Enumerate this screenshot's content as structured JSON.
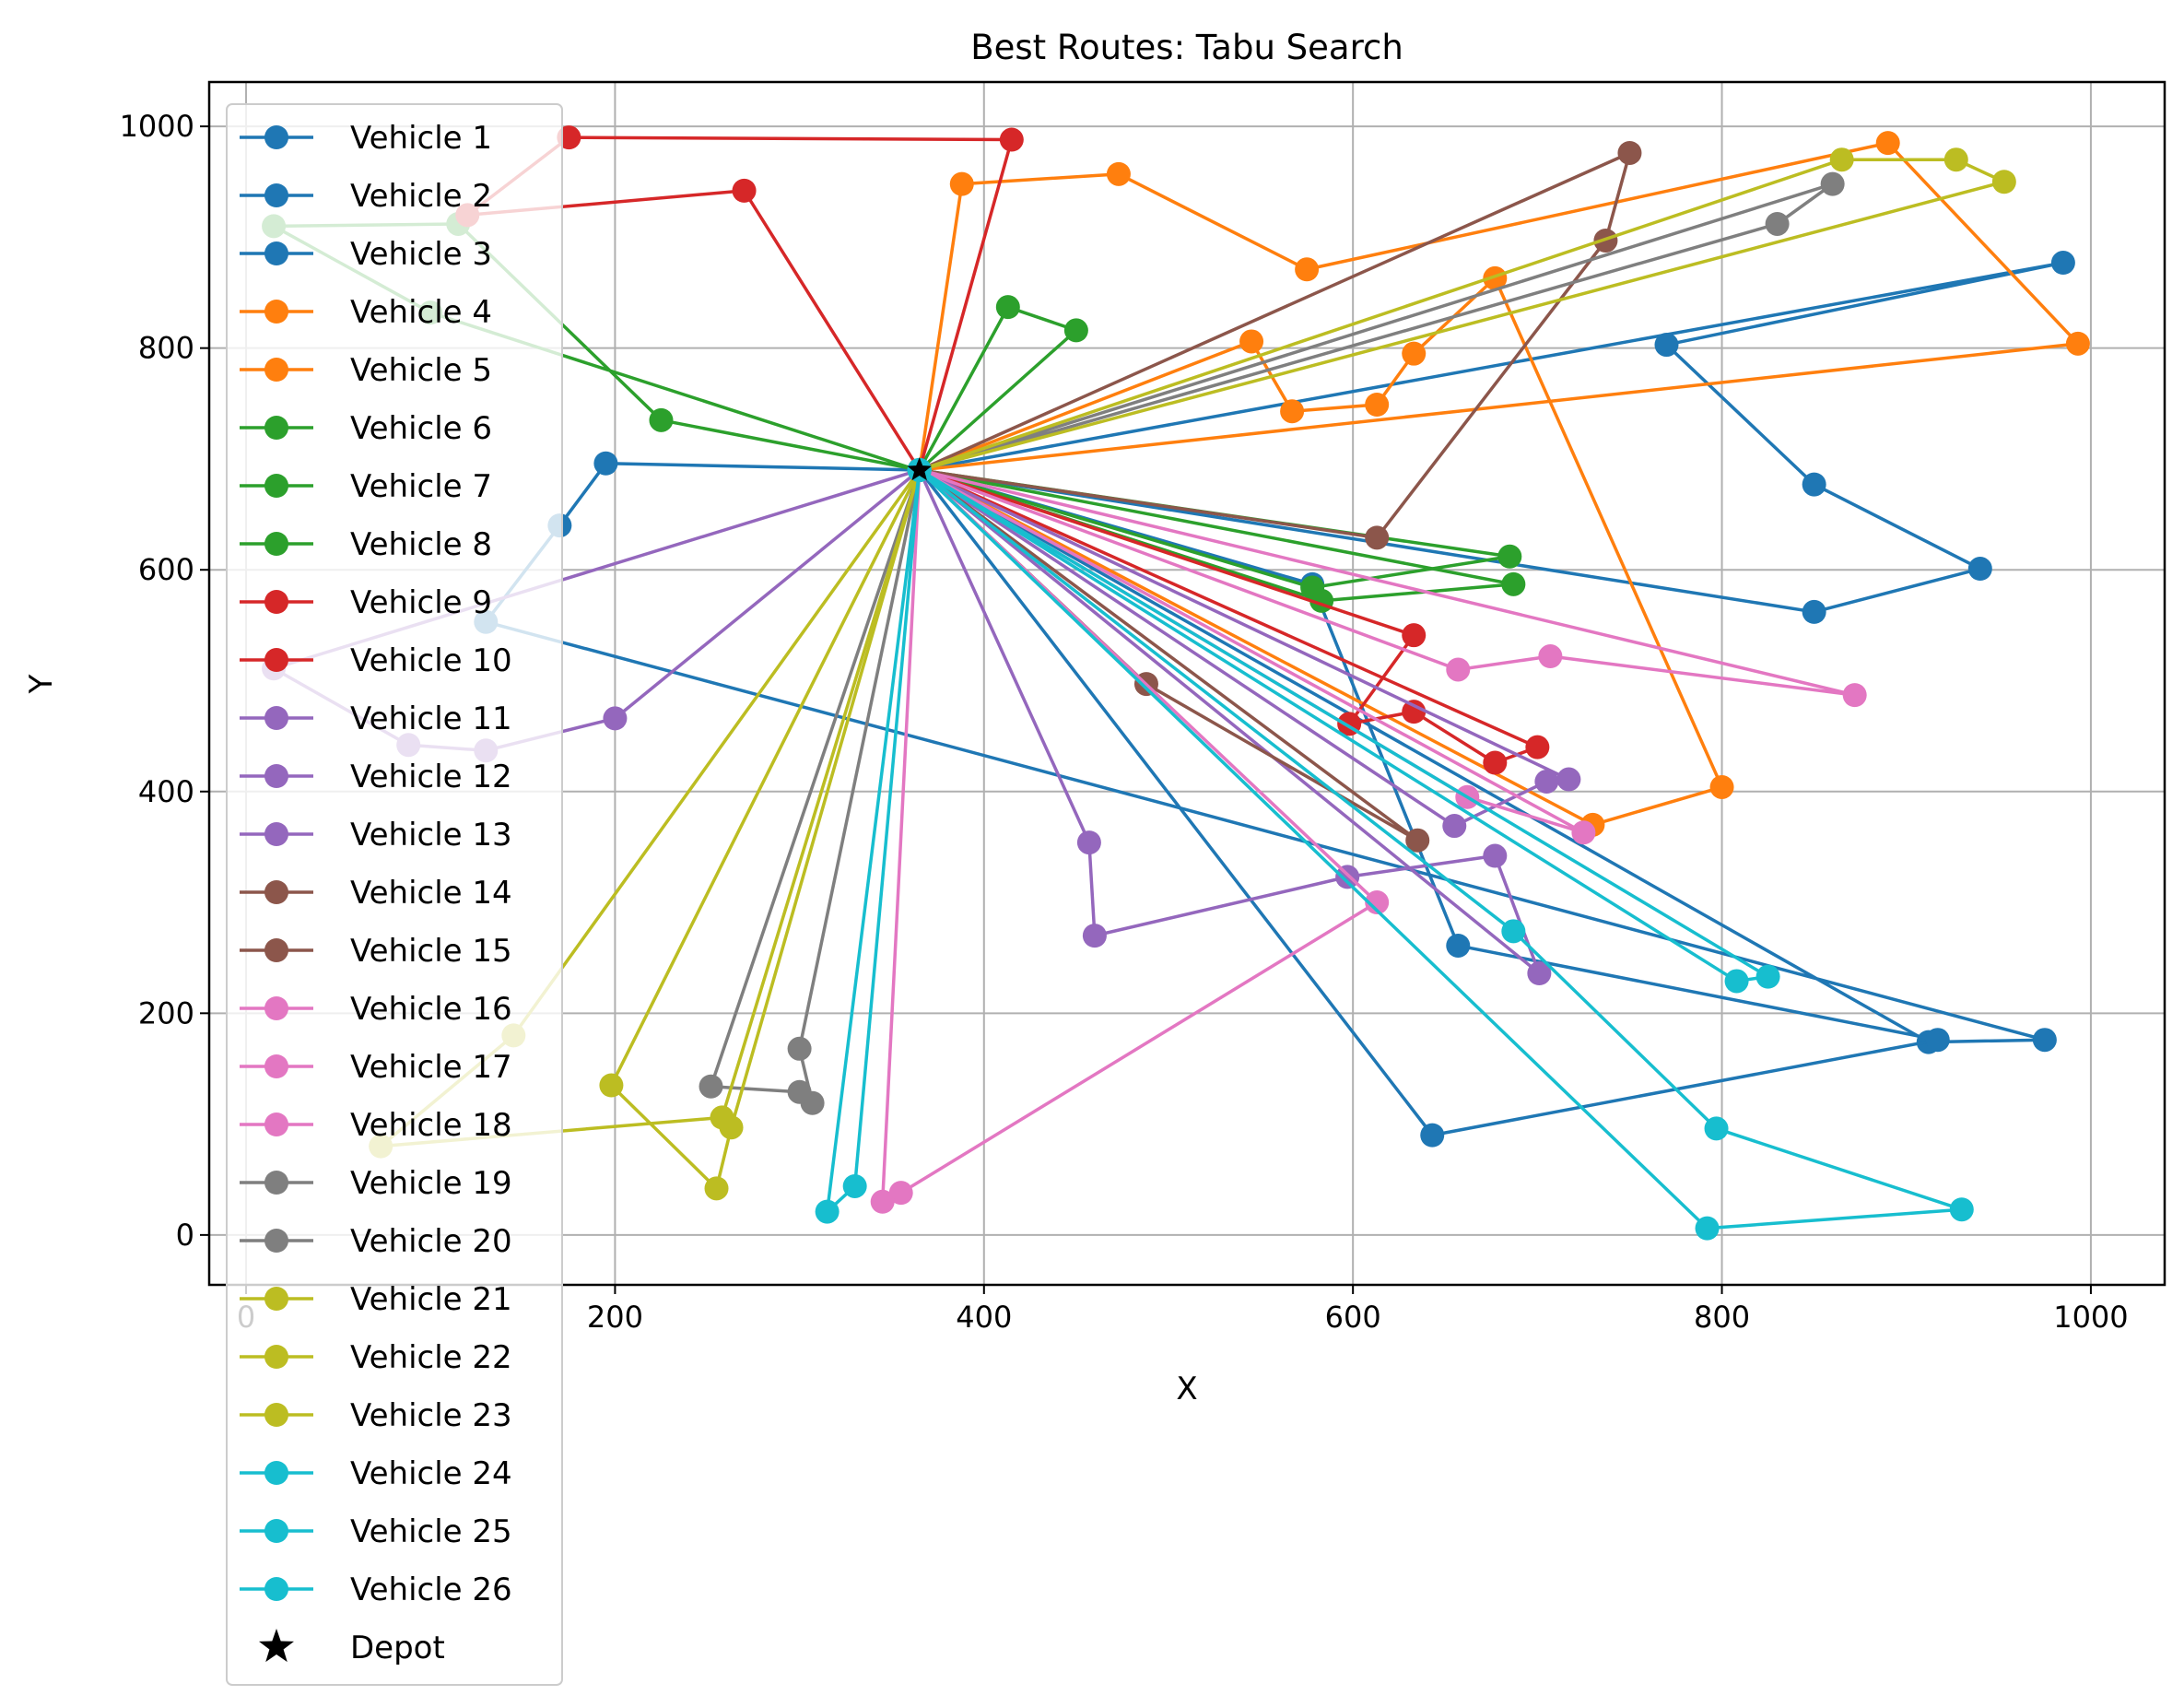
{
  "chart_data": {
    "type": "line",
    "title": "Best Routes: Tabu Search",
    "xlabel": "X",
    "ylabel": "Y",
    "xlim": [
      -20,
      1040
    ],
    "ylim": [
      -45,
      1040
    ],
    "xticks": [
      0,
      200,
      400,
      600,
      800,
      1000
    ],
    "yticks": [
      0,
      200,
      400,
      600,
      800,
      1000
    ],
    "xtick_labels": [
      "0",
      "200",
      "400",
      "600",
      "800",
      "1000"
    ],
    "ytick_labels": [
      "0",
      "200",
      "400",
      "600",
      "800",
      "1000"
    ],
    "grid": true,
    "legend_placement": "upper-left",
    "depot": {
      "name": "Depot",
      "x": 365,
      "y": 690,
      "color": "#000000",
      "marker": "star"
    },
    "series": [
      {
        "name": "Vehicle 1",
        "color": "#1f77b4",
        "x": [
          365,
          985,
          770,
          850,
          940,
          850,
          365
        ],
        "y": [
          690,
          877,
          803,
          677,
          601,
          562,
          690
        ]
      },
      {
        "name": "Vehicle 2",
        "color": "#1f77b4",
        "x": [
          365,
          195,
          170,
          130,
          975,
          912,
          365
        ],
        "y": [
          690,
          696,
          640,
          553,
          176,
          174,
          690
        ]
      },
      {
        "name": "Vehicle 3",
        "color": "#1f77b4",
        "x": [
          365,
          578,
          657,
          917,
          643,
          365
        ],
        "y": [
          690,
          587,
          261,
          176,
          90,
          690
        ]
      },
      {
        "name": "Vehicle 4",
        "color": "#ff7f0e",
        "x": [
          365,
          993,
          890,
          575,
          473,
          388,
          365
        ],
        "y": [
          690,
          804,
          985,
          871,
          957,
          948,
          690
        ]
      },
      {
        "name": "Vehicle 5",
        "color": "#ff7f0e",
        "x": [
          365,
          545,
          567,
          613,
          633,
          677,
          800,
          730,
          365
        ],
        "y": [
          690,
          806,
          743,
          749,
          795,
          863,
          404,
          370,
          690
        ]
      },
      {
        "name": "Vehicle 6",
        "color": "#2ca02c",
        "x": [
          365,
          450,
          413,
          365
        ],
        "y": [
          690,
          816,
          837,
          690
        ]
      },
      {
        "name": "Vehicle 7",
        "color": "#2ca02c",
        "x": [
          365,
          685,
          578,
          365
        ],
        "y": [
          690,
          612,
          584,
          690
        ]
      },
      {
        "name": "Vehicle 8",
        "color": "#2ca02c",
        "x": [
          365,
          687,
          583,
          100,
          15,
          115,
          225,
          365
        ],
        "y": [
          690,
          587,
          572,
          832,
          910,
          912,
          735,
          690
        ]
      },
      {
        "name": "Vehicle 9",
        "color": "#d62728",
        "x": [
          365,
          415,
          175,
          120,
          270,
          365
        ],
        "y": [
          690,
          988,
          990,
          920,
          942,
          690
        ]
      },
      {
        "name": "Vehicle 10",
        "color": "#d62728",
        "x": [
          365,
          700,
          677,
          633,
          598,
          633,
          365
        ],
        "y": [
          690,
          440,
          426,
          472,
          461,
          541,
          690
        ]
      },
      {
        "name": "Vehicle 11",
        "color": "#9467bd",
        "x": [
          365,
          200,
          130,
          88,
          15,
          365
        ],
        "y": [
          690,
          466,
          437,
          442,
          511,
          690
        ]
      },
      {
        "name": "Vehicle 12",
        "color": "#9467bd",
        "x": [
          365,
          717,
          705,
          655,
          365
        ],
        "y": [
          690,
          411,
          409,
          369,
          690
        ]
      },
      {
        "name": "Vehicle 13",
        "color": "#9467bd",
        "x": [
          365,
          457,
          460,
          597,
          677,
          701,
          365
        ],
        "y": [
          690,
          354,
          270,
          323,
          342,
          236,
          690
        ]
      },
      {
        "name": "Vehicle 14",
        "color": "#8c564b",
        "x": [
          365,
          750,
          737,
          613,
          365
        ],
        "y": [
          690,
          976,
          897,
          629,
          690
        ]
      },
      {
        "name": "Vehicle 15",
        "color": "#8c564b",
        "x": [
          365,
          635,
          488,
          365
        ],
        "y": [
          690,
          356,
          497,
          690
        ]
      },
      {
        "name": "Vehicle 16",
        "color": "#e377c2",
        "x": [
          365,
          872,
          707,
          657,
          365
        ],
        "y": [
          690,
          487,
          522,
          510,
          690
        ]
      },
      {
        "name": "Vehicle 17",
        "color": "#e377c2",
        "x": [
          365,
          725,
          662,
          365
        ],
        "y": [
          690,
          363,
          395,
          690
        ]
      },
      {
        "name": "Vehicle 18",
        "color": "#e377c2",
        "x": [
          365,
          613,
          355,
          345,
          365
        ],
        "y": [
          690,
          300,
          38,
          30,
          690
        ]
      },
      {
        "name": "Vehicle 19",
        "color": "#7f7f7f",
        "x": [
          365,
          860,
          830,
          365
        ],
        "y": [
          690,
          948,
          912,
          690
        ]
      },
      {
        "name": "Vehicle 20",
        "color": "#7f7f7f",
        "x": [
          365,
          300,
          307,
          300,
          252,
          365
        ],
        "y": [
          690,
          168,
          119,
          129,
          134,
          690
        ]
      },
      {
        "name": "Vehicle 21",
        "color": "#bcbd22",
        "x": [
          365,
          953,
          927,
          865,
          365
        ],
        "y": [
          690,
          950,
          970,
          970,
          690
        ]
      },
      {
        "name": "Vehicle 22",
        "color": "#bcbd22",
        "x": [
          365,
          263,
          255,
          198,
          365
        ],
        "y": [
          690,
          97,
          42,
          135,
          690
        ]
      },
      {
        "name": "Vehicle 23",
        "color": "#bcbd22",
        "x": [
          365,
          145,
          73,
          258,
          365
        ],
        "y": [
          690,
          180,
          80,
          106,
          690
        ]
      },
      {
        "name": "Vehicle 24",
        "color": "#17becf",
        "x": [
          365,
          825,
          808,
          365
        ],
        "y": [
          690,
          233,
          229,
          690
        ]
      },
      {
        "name": "Vehicle 25",
        "color": "#17becf",
        "x": [
          365,
          330,
          315,
          365
        ],
        "y": [
          690,
          44,
          21,
          690
        ]
      },
      {
        "name": "Vehicle 26",
        "color": "#17becf",
        "x": [
          365,
          687,
          797,
          930,
          792,
          365
        ],
        "y": [
          690,
          274,
          96,
          23,
          6,
          690
        ]
      }
    ]
  }
}
